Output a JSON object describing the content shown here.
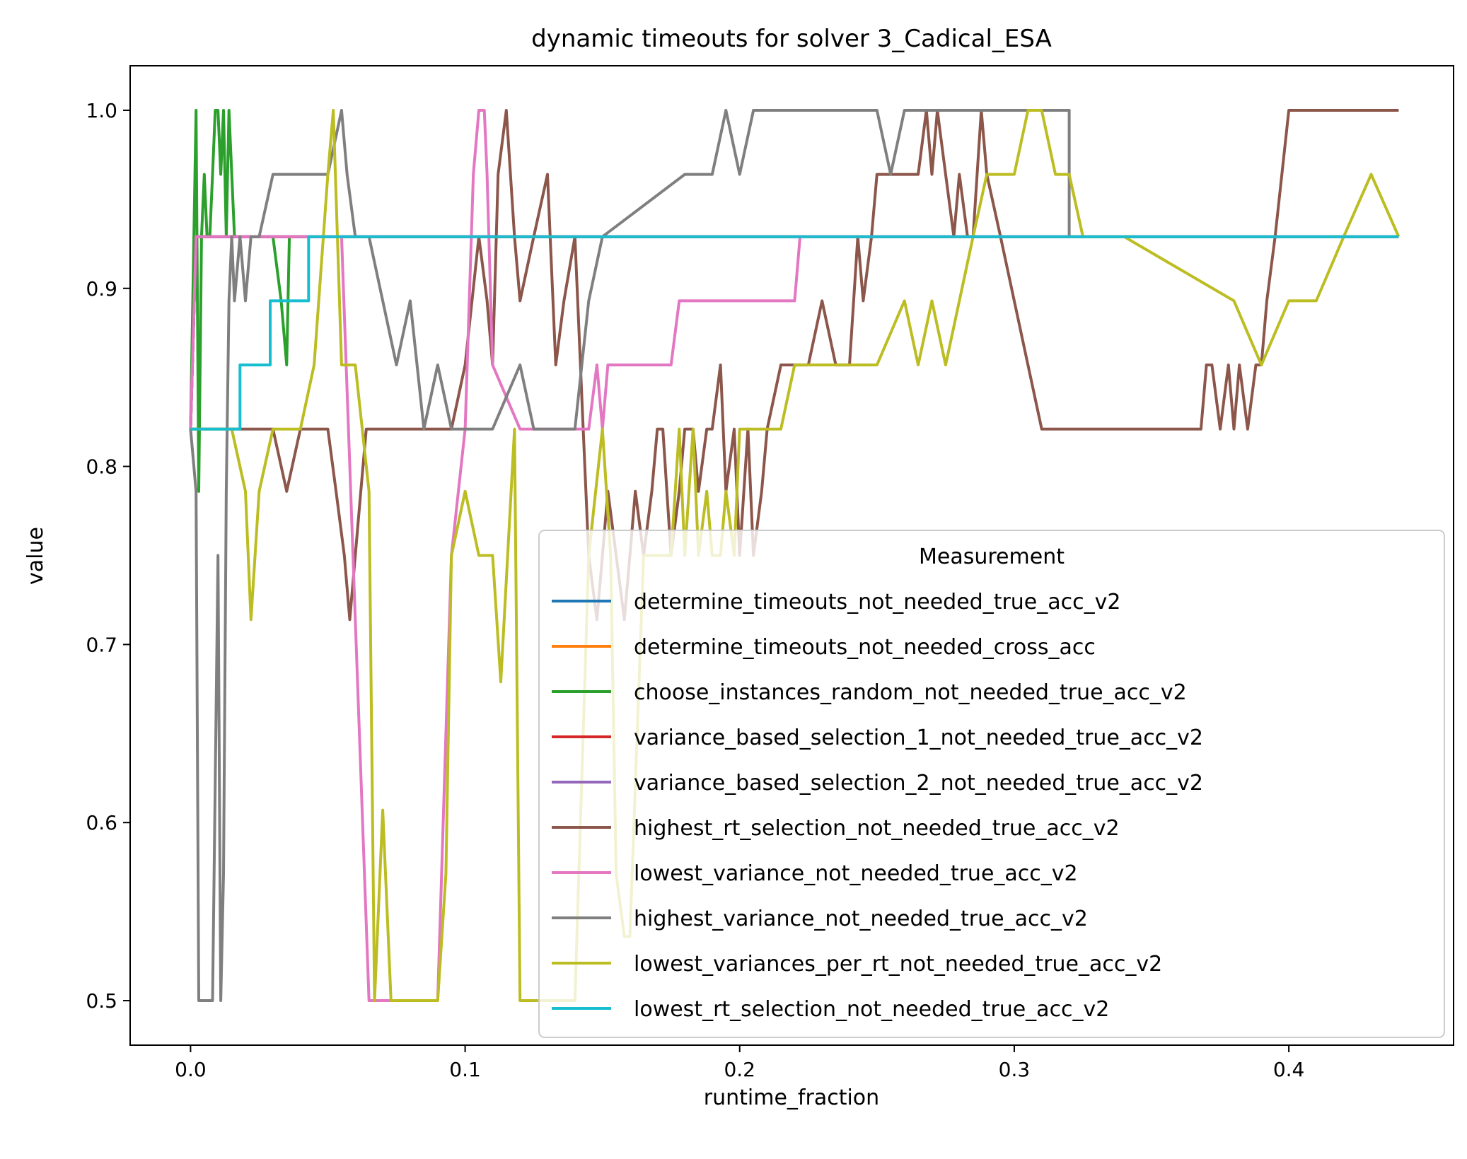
{
  "chart_data": {
    "type": "line",
    "title": "dynamic timeouts for solver 3_Cadical_ESA",
    "xlabel": "runtime_fraction",
    "ylabel": "value",
    "xlim": [
      -0.022,
      0.46
    ],
    "ylim": [
      0.475,
      1.025
    ],
    "xticks": [
      0.0,
      0.1,
      0.2,
      0.3,
      0.4
    ],
    "xtick_labels": [
      "0.0",
      "0.1",
      "0.2",
      "0.3",
      "0.4"
    ],
    "yticks": [
      0.5,
      0.6,
      0.7,
      0.8,
      0.9,
      1.0
    ],
    "ytick_labels": [
      "0.5",
      "0.6",
      "0.7",
      "0.8",
      "0.9",
      "1.0"
    ],
    "grid": false,
    "legend": {
      "title": "Measurement",
      "position": "lower right"
    },
    "series": [
      {
        "name": "determine_timeouts_not_needed_true_acc_v2",
        "color": "#1f77b4",
        "x": [
          0.0,
          0.002,
          0.44
        ],
        "y": [
          0.821,
          0.929,
          0.929
        ]
      },
      {
        "name": "determine_timeouts_not_needed_cross_acc",
        "color": "#ff7f0e",
        "x": [
          0.0,
          0.002,
          0.44
        ],
        "y": [
          0.821,
          0.929,
          0.929
        ]
      },
      {
        "name": "choose_instances_random_not_needed_true_acc_v2",
        "color": "#2ca02c",
        "x": [
          0.0,
          0.002,
          0.003,
          0.004,
          0.005,
          0.006,
          0.007,
          0.008,
          0.009,
          0.01,
          0.011,
          0.012,
          0.013,
          0.014,
          0.016,
          0.018,
          0.02,
          0.025,
          0.03,
          0.033,
          0.035,
          0.036,
          0.038,
          0.04,
          0.044
        ],
        "y": [
          0.821,
          1.0,
          0.786,
          0.929,
          0.964,
          0.929,
          0.929,
          0.964,
          1.0,
          1.0,
          0.964,
          1.0,
          0.929,
          1.0,
          0.929,
          0.929,
          0.929,
          0.929,
          0.929,
          0.893,
          0.857,
          0.929,
          0.929,
          0.929,
          0.929
        ]
      },
      {
        "name": "variance_based_selection_1_not_needed_true_acc_v2",
        "color": "#d62728",
        "x": [
          0.0,
          0.002,
          0.44
        ],
        "y": [
          0.821,
          0.929,
          0.929
        ]
      },
      {
        "name": "variance_based_selection_2_not_needed_true_acc_v2",
        "color": "#9467bd",
        "x": [
          0.0,
          0.002,
          0.44
        ],
        "y": [
          0.821,
          0.929,
          0.929
        ]
      },
      {
        "name": "highest_rt_selection_not_needed_true_acc_v2",
        "color": "#8c564b",
        "x": [
          0.0,
          0.002,
          0.01,
          0.02,
          0.025,
          0.03,
          0.035,
          0.04,
          0.045,
          0.05,
          0.053,
          0.056,
          0.058,
          0.06,
          0.062,
          0.064,
          0.066,
          0.07,
          0.075,
          0.08,
          0.085,
          0.09,
          0.095,
          0.1,
          0.105,
          0.108,
          0.11,
          0.112,
          0.115,
          0.118,
          0.12,
          0.125,
          0.13,
          0.133,
          0.136,
          0.14,
          0.143,
          0.145,
          0.148,
          0.15,
          0.152,
          0.155,
          0.158,
          0.16,
          0.162,
          0.165,
          0.168,
          0.17,
          0.172,
          0.175,
          0.178,
          0.18,
          0.183,
          0.185,
          0.188,
          0.19,
          0.193,
          0.195,
          0.198,
          0.2,
          0.203,
          0.205,
          0.208,
          0.21,
          0.215,
          0.22,
          0.225,
          0.23,
          0.235,
          0.24,
          0.243,
          0.245,
          0.248,
          0.25,
          0.253,
          0.255,
          0.26,
          0.265,
          0.268,
          0.27,
          0.272,
          0.275,
          0.278,
          0.28,
          0.283,
          0.285,
          0.288,
          0.29,
          0.295,
          0.3,
          0.305,
          0.31,
          0.35,
          0.368,
          0.37,
          0.372,
          0.375,
          0.378,
          0.38,
          0.382,
          0.385,
          0.388,
          0.39,
          0.392,
          0.395,
          0.4,
          0.41,
          0.42,
          0.43,
          0.44
        ],
        "y": [
          0.821,
          0.821,
          0.821,
          0.821,
          0.821,
          0.821,
          0.786,
          0.821,
          0.821,
          0.821,
          0.786,
          0.75,
          0.714,
          0.75,
          0.786,
          0.821,
          0.821,
          0.821,
          0.821,
          0.821,
          0.821,
          0.821,
          0.821,
          0.857,
          0.929,
          0.893,
          0.857,
          0.964,
          1.0,
          0.929,
          0.893,
          0.929,
          0.964,
          0.857,
          0.893,
          0.929,
          0.821,
          0.75,
          0.714,
          0.75,
          0.786,
          0.75,
          0.714,
          0.75,
          0.786,
          0.75,
          0.786,
          0.821,
          0.821,
          0.75,
          0.786,
          0.821,
          0.821,
          0.786,
          0.821,
          0.821,
          0.857,
          0.786,
          0.821,
          0.75,
          0.821,
          0.75,
          0.786,
          0.821,
          0.857,
          0.857,
          0.857,
          0.893,
          0.857,
          0.857,
          0.929,
          0.893,
          0.929,
          0.964,
          0.964,
          0.964,
          0.964,
          0.964,
          1.0,
          0.964,
          1.0,
          0.964,
          0.929,
          0.964,
          0.929,
          0.929,
          1.0,
          0.964,
          0.929,
          0.893,
          0.857,
          0.821,
          0.821,
          0.821,
          0.857,
          0.857,
          0.821,
          0.857,
          0.821,
          0.857,
          0.821,
          0.857,
          0.857,
          0.893,
          0.929,
          1.0,
          1.0,
          1.0,
          1.0,
          1.0
        ]
      },
      {
        "name": "lowest_variance_not_needed_true_acc_v2",
        "color": "#e377c2",
        "x": [
          0.0,
          0.002,
          0.05,
          0.055,
          0.06,
          0.065,
          0.07,
          0.075,
          0.09,
          0.095,
          0.1,
          0.103,
          0.105,
          0.107,
          0.108,
          0.11,
          0.12,
          0.13,
          0.14,
          0.145,
          0.148,
          0.15,
          0.152,
          0.175,
          0.178,
          0.2,
          0.22,
          0.222,
          0.44
        ],
        "y": [
          0.821,
          0.929,
          0.929,
          0.929,
          0.714,
          0.5,
          0.5,
          0.5,
          0.5,
          0.75,
          0.821,
          0.964,
          1.0,
          1.0,
          0.964,
          0.857,
          0.821,
          0.821,
          0.821,
          0.821,
          0.857,
          0.821,
          0.857,
          0.857,
          0.893,
          0.893,
          0.893,
          0.929,
          0.929
        ]
      },
      {
        "name": "highest_variance_not_needed_true_acc_v2",
        "color": "#7f7f7f",
        "x": [
          0.0,
          0.002,
          0.003,
          0.004,
          0.005,
          0.006,
          0.008,
          0.01,
          0.011,
          0.012,
          0.013,
          0.014,
          0.015,
          0.016,
          0.018,
          0.02,
          0.022,
          0.025,
          0.03,
          0.035,
          0.04,
          0.045,
          0.05,
          0.055,
          0.057,
          0.06,
          0.065,
          0.07,
          0.075,
          0.08,
          0.085,
          0.09,
          0.095,
          0.1,
          0.11,
          0.12,
          0.125,
          0.13,
          0.14,
          0.145,
          0.15,
          0.18,
          0.19,
          0.195,
          0.2,
          0.205,
          0.21,
          0.22,
          0.25,
          0.255,
          0.26,
          0.3,
          0.32,
          0.32,
          0.44
        ],
        "y": [
          0.821,
          0.786,
          0.5,
          0.5,
          0.5,
          0.5,
          0.5,
          0.75,
          0.5,
          0.571,
          0.786,
          0.893,
          0.929,
          0.893,
          0.929,
          0.893,
          0.929,
          0.929,
          0.964,
          0.964,
          0.964,
          0.964,
          0.964,
          1.0,
          0.964,
          0.929,
          0.929,
          0.893,
          0.857,
          0.893,
          0.821,
          0.857,
          0.821,
          0.821,
          0.821,
          0.857,
          0.821,
          0.821,
          0.821,
          0.893,
          0.929,
          0.964,
          0.964,
          1.0,
          0.964,
          1.0,
          1.0,
          1.0,
          1.0,
          0.964,
          1.0,
          1.0,
          1.0,
          0.929,
          0.929
        ]
      },
      {
        "name": "lowest_variances_per_rt_not_needed_true_acc_v2",
        "color": "#bcbd22",
        "x": [
          0.0,
          0.002,
          0.01,
          0.015,
          0.02,
          0.022,
          0.025,
          0.03,
          0.035,
          0.04,
          0.045,
          0.05,
          0.052,
          0.055,
          0.06,
          0.065,
          0.067,
          0.069,
          0.07,
          0.073,
          0.075,
          0.08,
          0.09,
          0.093,
          0.095,
          0.1,
          0.105,
          0.11,
          0.113,
          0.118,
          0.12,
          0.13,
          0.14,
          0.145,
          0.15,
          0.153,
          0.155,
          0.158,
          0.16,
          0.165,
          0.17,
          0.175,
          0.178,
          0.18,
          0.183,
          0.185,
          0.188,
          0.19,
          0.193,
          0.195,
          0.198,
          0.2,
          0.205,
          0.21,
          0.215,
          0.22,
          0.225,
          0.23,
          0.24,
          0.25,
          0.26,
          0.265,
          0.27,
          0.275,
          0.28,
          0.285,
          0.29,
          0.3,
          0.305,
          0.31,
          0.315,
          0.32,
          0.325,
          0.33,
          0.34,
          0.38,
          0.39,
          0.4,
          0.41,
          0.42,
          0.43,
          0.44
        ],
        "y": [
          0.821,
          0.821,
          0.821,
          0.821,
          0.786,
          0.714,
          0.786,
          0.821,
          0.821,
          0.821,
          0.857,
          0.964,
          1.0,
          0.857,
          0.857,
          0.786,
          0.5,
          0.571,
          0.607,
          0.5,
          0.5,
          0.5,
          0.5,
          0.571,
          0.75,
          0.786,
          0.75,
          0.75,
          0.679,
          0.821,
          0.5,
          0.5,
          0.5,
          0.75,
          0.821,
          0.75,
          0.571,
          0.536,
          0.536,
          0.75,
          0.75,
          0.75,
          0.821,
          0.75,
          0.821,
          0.75,
          0.786,
          0.75,
          0.75,
          0.786,
          0.75,
          0.821,
          0.821,
          0.821,
          0.821,
          0.857,
          0.857,
          0.857,
          0.857,
          0.857,
          0.893,
          0.857,
          0.893,
          0.857,
          0.893,
          0.929,
          0.964,
          0.964,
          1.0,
          1.0,
          0.964,
          0.964,
          0.929,
          0.929,
          0.929,
          0.893,
          0.857,
          0.893,
          0.893,
          0.929,
          0.964,
          0.929
        ]
      },
      {
        "name": "lowest_rt_selection_not_needed_true_acc_v2",
        "color": "#17becf",
        "x": [
          0.0,
          0.01,
          0.018,
          0.018,
          0.029,
          0.029,
          0.043,
          0.043,
          0.44
        ],
        "y": [
          0.821,
          0.821,
          0.821,
          0.857,
          0.857,
          0.893,
          0.893,
          0.929,
          0.929
        ]
      }
    ]
  }
}
